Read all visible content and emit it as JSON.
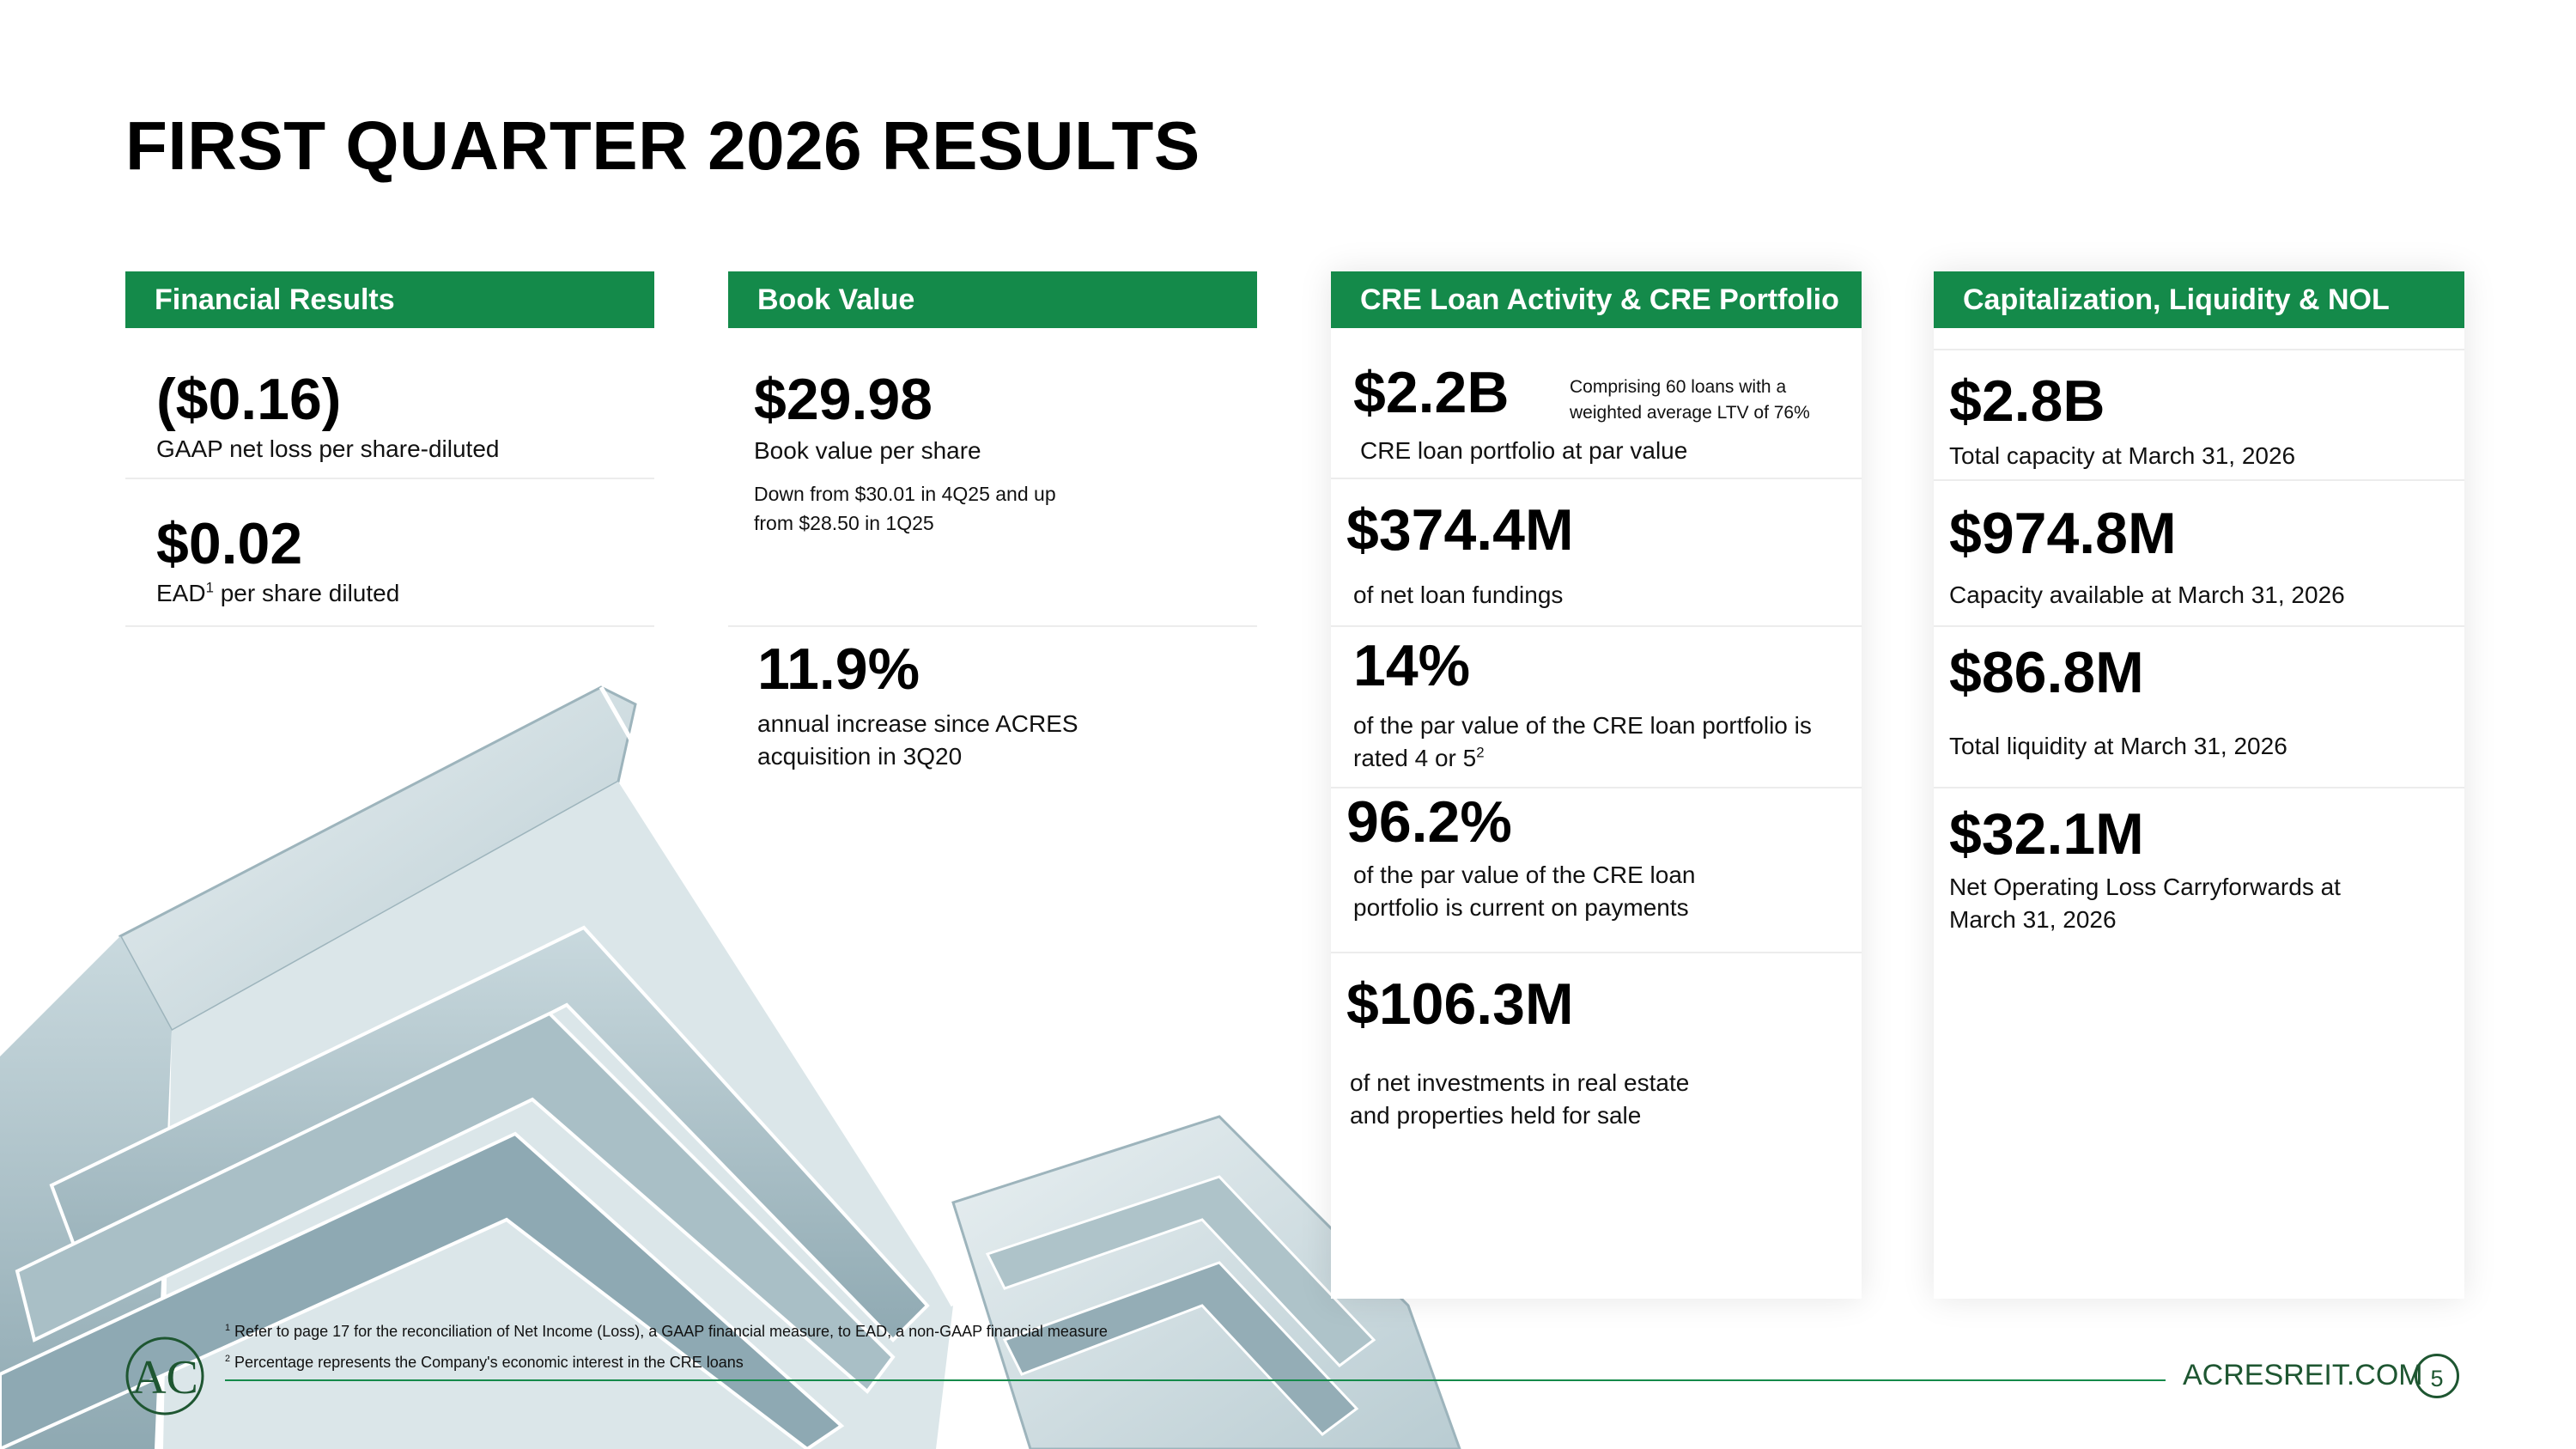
{
  "title": "FIRST QUARTER 2026 RESULTS",
  "panels": {
    "financial": {
      "header": "Financial Results",
      "m1_value": "($0.16)",
      "m1_label": "GAAP net loss per share-diluted",
      "m2_value": "$0.02",
      "m2_label_pre": "EAD",
      "m2_label_sup": "1",
      "m2_label_post": " per share diluted"
    },
    "book": {
      "header": "Book Value",
      "m1_value": "$29.98",
      "m1_label": "Book value per share",
      "m1_note_line1": "Down from $30.01 in 4Q25 and up",
      "m1_note_line2": "from $28.50 in 1Q25",
      "m2_value": "11.9%",
      "m2_label_line1": "annual increase since ACRES",
      "m2_label_line2": "acquisition in 3Q20"
    },
    "cre": {
      "header": "CRE Loan Activity & CRE Portfolio",
      "m1_value": "$2.2B",
      "m1_note_line1": "Comprising 60 loans with a",
      "m1_note_line2": "weighted average LTV of 76%",
      "m1_label": "CRE loan portfolio at par value",
      "m2_value": "$374.4M",
      "m2_label": "of net loan fundings",
      "m3_value": "14%",
      "m3_label_line1": "of the par value of the CRE loan portfolio is",
      "m3_label_line2_pre": "rated 4 or 5",
      "m3_label_line2_sup": "2",
      "m4_value": "96.2%",
      "m4_label_line1": "of the par value of the CRE loan",
      "m4_label_line2": "portfolio is current on payments",
      "m5_value": "$106.3M",
      "m5_label_line1": "of net investments in real estate",
      "m5_label_line2": "and properties held for sale"
    },
    "cap": {
      "header": "Capitalization, Liquidity & NOL",
      "m1_value": "$2.8B",
      "m1_label": "Total capacity at March 31, 2026",
      "m2_value": "$974.8M",
      "m2_label": "Capacity available at March 31, 2026",
      "m3_value": "$86.8M",
      "m3_label": "Total liquidity at March 31, 2026",
      "m4_value": "$32.1M",
      "m4_label_line1": "Net Operating Loss Carryforwards at",
      "m4_label_line2": "March 31, 2026"
    }
  },
  "footnotes": {
    "f1_sup": "1",
    "f1_text": " Refer to page 17 for the reconciliation of Net Income (Loss), a GAAP financial measure, to EAD, a non-GAAP financial measure",
    "f2_sup": "2",
    "f2_text": " Percentage represents the Company's economic interest in the CRE loans"
  },
  "footer": {
    "site": "ACRESREIT.COM",
    "page_number": "5",
    "logo_letters": "AC"
  },
  "colors": {
    "accent_green": "#148a4a",
    "dark_green": "#1e5631"
  }
}
